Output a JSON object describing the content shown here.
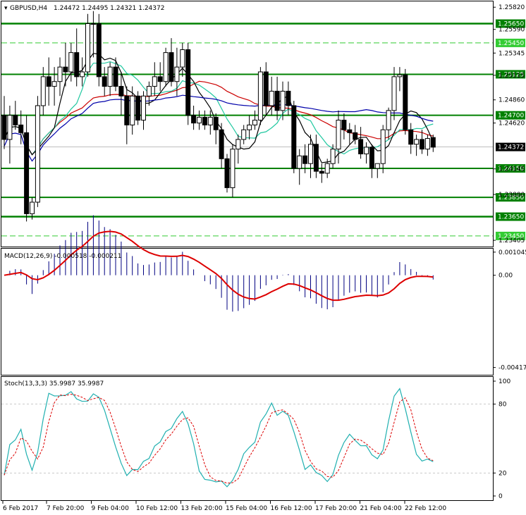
{
  "header": {
    "symbol_label": "GBPUSD,H4",
    "ohlc": "1.24472 1.24495 1.24321 1.24372"
  },
  "chart_data": {
    "type": "candlestick",
    "symbol": "GBPUSD",
    "timeframe": "H4",
    "last_close": "1.24372",
    "ylim": [
      1.2334,
      1.2588
    ],
    "y_ticks": [
      "1.25820",
      "1.25590",
      "1.25345",
      "1.25115",
      "1.24860",
      "1.24620",
      "1.24145",
      "1.23880",
      "1.23405"
    ],
    "x_ticks": [
      "6 Feb 2017",
      "7 Feb 20:00",
      "9 Feb 04:00",
      "10 Feb 12:00",
      "13 Feb 20:00",
      "15 Feb 04:00",
      "16 Feb 12:00",
      "17 Feb 20:00",
      "21 Feb 04:00",
      "22 Feb 12:00"
    ],
    "levels": [
      {
        "value": 1.2565,
        "label": "1.25650",
        "style": "solid",
        "weight": "thick"
      },
      {
        "value": 1.2545,
        "label": "1.25450",
        "style": "dashed",
        "weight": "thin"
      },
      {
        "value": 1.25125,
        "label": "1.25125",
        "style": "solid",
        "weight": "normal"
      },
      {
        "value": 1.247,
        "label": "1.24700",
        "style": "solid",
        "weight": "normal"
      },
      {
        "value": 1.2415,
        "label": "1.24150",
        "style": "solid",
        "weight": "normal"
      },
      {
        "value": 1.2385,
        "label": "1.23850",
        "style": "solid",
        "weight": "normal"
      },
      {
        "value": 1.2365,
        "label": "1.23650",
        "style": "solid",
        "weight": "thick"
      },
      {
        "value": 1.2345,
        "label": "1.23450",
        "style": "dashed",
        "weight": "thin"
      }
    ],
    "candles": [
      [
        1.247,
        1.249,
        1.2435,
        1.2445
      ],
      [
        1.2445,
        1.248,
        1.242,
        1.247
      ],
      [
        1.247,
        1.2485,
        1.2455,
        1.246
      ],
      [
        1.246,
        1.2475,
        1.244,
        1.2452
      ],
      [
        1.2452,
        1.247,
        1.236,
        1.2368
      ],
      [
        1.2368,
        1.2385,
        1.2362,
        1.238
      ],
      [
        1.238,
        1.249,
        1.2375,
        1.248
      ],
      [
        1.248,
        1.252,
        1.247,
        1.251
      ],
      [
        1.251,
        1.253,
        1.248,
        1.25
      ],
      [
        1.25,
        1.252,
        1.248,
        1.2505
      ],
      [
        1.2505,
        1.253,
        1.249,
        1.252
      ],
      [
        1.252,
        1.2545,
        1.25,
        1.2515
      ],
      [
        1.2515,
        1.2545,
        1.2505,
        1.2535
      ],
      [
        1.2535,
        1.256,
        1.25,
        1.251
      ],
      [
        1.251,
        1.253,
        1.25,
        1.2515
      ],
      [
        1.2515,
        1.2575,
        1.251,
        1.2565
      ],
      [
        1.2565,
        1.2578,
        1.253,
        1.2565
      ],
      [
        1.2565,
        1.2575,
        1.25,
        1.251
      ],
      [
        1.251,
        1.252,
        1.249,
        1.25
      ],
      [
        1.25,
        1.2525,
        1.249,
        1.252
      ],
      [
        1.252,
        1.253,
        1.2495,
        1.25
      ],
      [
        1.25,
        1.2515,
        1.247,
        1.249
      ],
      [
        1.249,
        1.25,
        1.244,
        1.246
      ],
      [
        1.246,
        1.25,
        1.245,
        1.249
      ],
      [
        1.249,
        1.2495,
        1.246,
        1.2465
      ],
      [
        1.2465,
        1.2495,
        1.2455,
        1.249
      ],
      [
        1.249,
        1.2505,
        1.248,
        1.25
      ],
      [
        1.25,
        1.2525,
        1.249,
        1.251
      ],
      [
        1.251,
        1.2525,
        1.2495,
        1.2505
      ],
      [
        1.2505,
        1.254,
        1.25,
        1.2535
      ],
      [
        1.2535,
        1.255,
        1.25,
        1.2505
      ],
      [
        1.2505,
        1.254,
        1.249,
        1.252
      ],
      [
        1.252,
        1.2545,
        1.251,
        1.2538
      ],
      [
        1.2538,
        1.2545,
        1.246,
        1.247
      ],
      [
        1.247,
        1.248,
        1.2455,
        1.2462
      ],
      [
        1.2462,
        1.2475,
        1.2455,
        1.2468
      ],
      [
        1.2468,
        1.2475,
        1.2455,
        1.246
      ],
      [
        1.246,
        1.2475,
        1.245,
        1.2468
      ],
      [
        1.2468,
        1.2472,
        1.244,
        1.2455
      ],
      [
        1.2455,
        1.2462,
        1.2415,
        1.2425
      ],
      [
        1.2425,
        1.243,
        1.239,
        1.2395
      ],
      [
        1.2395,
        1.244,
        1.2385,
        1.2435
      ],
      [
        1.2435,
        1.245,
        1.242,
        1.2445
      ],
      [
        1.2445,
        1.246,
        1.244,
        1.2455
      ],
      [
        1.2455,
        1.247,
        1.2445,
        1.246
      ],
      [
        1.246,
        1.2475,
        1.2455,
        1.2465
      ],
      [
        1.2465,
        1.252,
        1.246,
        1.2515
      ],
      [
        1.2515,
        1.2525,
        1.247,
        1.248
      ],
      [
        1.248,
        1.251,
        1.247,
        1.2495
      ],
      [
        1.2495,
        1.251,
        1.2465,
        1.2475
      ],
      [
        1.2475,
        1.2505,
        1.2465,
        1.2495
      ],
      [
        1.2495,
        1.2505,
        1.247,
        1.248
      ],
      [
        1.248,
        1.2485,
        1.241,
        1.2415
      ],
      [
        1.2415,
        1.2435,
        1.2398,
        1.2428
      ],
      [
        1.2428,
        1.244,
        1.241,
        1.242
      ],
      [
        1.242,
        1.245,
        1.2405,
        1.244
      ],
      [
        1.244,
        1.245,
        1.2405,
        1.2412
      ],
      [
        1.2412,
        1.242,
        1.24,
        1.241
      ],
      [
        1.241,
        1.2425,
        1.2405,
        1.242
      ],
      [
        1.242,
        1.244,
        1.2415,
        1.2435
      ],
      [
        1.2435,
        1.2475,
        1.242,
        1.2465
      ],
      [
        1.2465,
        1.2472,
        1.2445,
        1.2455
      ],
      [
        1.2455,
        1.2462,
        1.244,
        1.2452
      ],
      [
        1.2452,
        1.246,
        1.244,
        1.2445
      ],
      [
        1.2445,
        1.2458,
        1.2425,
        1.243
      ],
      [
        1.243,
        1.2442,
        1.242,
        1.2437
      ],
      [
        1.2437,
        1.244,
        1.2405,
        1.2415
      ],
      [
        1.2415,
        1.242,
        1.2405,
        1.242
      ],
      [
        1.242,
        1.246,
        1.241,
        1.2455
      ],
      [
        1.2455,
        1.2478,
        1.2445,
        1.2475
      ],
      [
        1.2475,
        1.252,
        1.2465,
        1.251
      ],
      [
        1.251,
        1.252,
        1.2495,
        1.2512
      ],
      [
        1.2512,
        1.2518,
        1.245,
        1.2455
      ],
      [
        1.2455,
        1.2462,
        1.243,
        1.244
      ],
      [
        1.244,
        1.245,
        1.2428,
        1.2445
      ],
      [
        1.2445,
        1.2455,
        1.243,
        1.2435
      ],
      [
        1.2435,
        1.245,
        1.2428,
        1.2446
      ],
      [
        1.2447,
        1.245,
        1.2432,
        1.2437
      ]
    ],
    "indicators": {
      "macd": {
        "label": "MACD(12,26,9) -0.000518 -0.000211",
        "y_ticks": [
          "0.001045",
          "0.00",
          "-0.00417"
        ],
        "ylim": [
          -0.0045,
          0.0012
        ]
      },
      "stoch": {
        "label": "Stoch(13,3,3) 35.9987 35.9987",
        "y_ticks": [
          "100",
          "80",
          "20",
          "0"
        ],
        "ylim": [
          0,
          100
        ]
      }
    }
  },
  "colors": {
    "bull_body": "#ffffff",
    "bear_body": "#000000",
    "level_line": "#008000",
    "level_line_light": "#33cc33",
    "ma_red": "#cc0000",
    "ma_turquoise": "#20c8a0",
    "ma_black": "#000000",
    "ma_blue": "#0000aa",
    "macd_hist": "#000080",
    "macd_signal": "#dd0000",
    "stoch_main": "#20b0b0",
    "stoch_signal": "#dd0000"
  }
}
